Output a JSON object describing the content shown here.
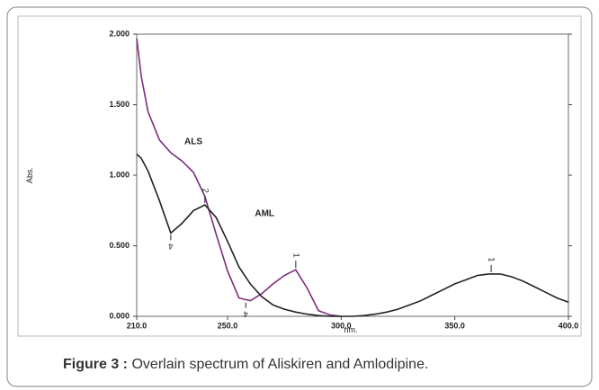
{
  "chart_data": {
    "type": "line",
    "caption_label": "Figure 3 :",
    "caption": "Overlain spectrum of Aliskiren and Amlodipine.",
    "xlabel": "nm.",
    "ylabel": "Abs.",
    "x": [
      210,
      212,
      215,
      220,
      225,
      230,
      235,
      240,
      245,
      250,
      255,
      260,
      265,
      270,
      275,
      280,
      285,
      290,
      295,
      300,
      305,
      310,
      315,
      320,
      325,
      330,
      335,
      340,
      345,
      350,
      355,
      360,
      365,
      370,
      375,
      380,
      385,
      390,
      395,
      400
    ],
    "series": [
      {
        "name": "ALS",
        "color": "#7b2d7b",
        "values": [
          1.97,
          1.7,
          1.45,
          1.25,
          1.16,
          1.1,
          1.02,
          0.85,
          0.58,
          0.32,
          0.13,
          0.11,
          0.16,
          0.23,
          0.29,
          0.33,
          0.2,
          0.04,
          0.01,
          0.0,
          null,
          null,
          null,
          null,
          null,
          null,
          null,
          null,
          null,
          null,
          null,
          null,
          null,
          null,
          null,
          null,
          null,
          null,
          null,
          null
        ]
      },
      {
        "name": "AML",
        "color": "#222222",
        "values": [
          1.15,
          1.12,
          1.03,
          0.82,
          0.59,
          0.66,
          0.75,
          0.79,
          0.7,
          0.53,
          0.35,
          0.23,
          0.14,
          0.08,
          0.05,
          0.03,
          0.015,
          0.005,
          0,
          0,
          0,
          0.005,
          0.015,
          0.03,
          0.05,
          0.08,
          0.11,
          0.15,
          0.19,
          0.23,
          0.26,
          0.29,
          0.3,
          0.3,
          0.28,
          0.25,
          0.21,
          0.17,
          0.13,
          0.1
        ]
      }
    ],
    "annotations": [
      {
        "text": "4",
        "x": 225,
        "y": 0.59
      },
      {
        "text": "2",
        "x": 240,
        "y": 0.79
      },
      {
        "text": "4",
        "x": 258,
        "y": 0.11
      },
      {
        "text": "1",
        "x": 280,
        "y": 0.33
      },
      {
        "text": "1",
        "x": 366,
        "y": 0.3
      }
    ],
    "series_labels": [
      {
        "text": "ALS",
        "x": 231,
        "y": 1.22
      },
      {
        "text": "AML",
        "x": 262,
        "y": 0.71
      }
    ],
    "xlim": [
      210,
      400
    ],
    "ylim": [
      0,
      2
    ],
    "xticks": [
      {
        "value": 210,
        "label": "210.0"
      },
      {
        "value": 250,
        "label": "250.0"
      },
      {
        "value": 300,
        "label": "300.0"
      },
      {
        "value": 350,
        "label": "350.0"
      },
      {
        "value": 400,
        "label": "400.0"
      }
    ],
    "yticks": [
      {
        "value": 0,
        "label": "0.000"
      },
      {
        "value": 0.5,
        "label": "0.500"
      },
      {
        "value": 1,
        "label": "1.000"
      },
      {
        "value": 1.5,
        "label": "1.500"
      },
      {
        "value": 2,
        "label": "2.000"
      }
    ]
  }
}
